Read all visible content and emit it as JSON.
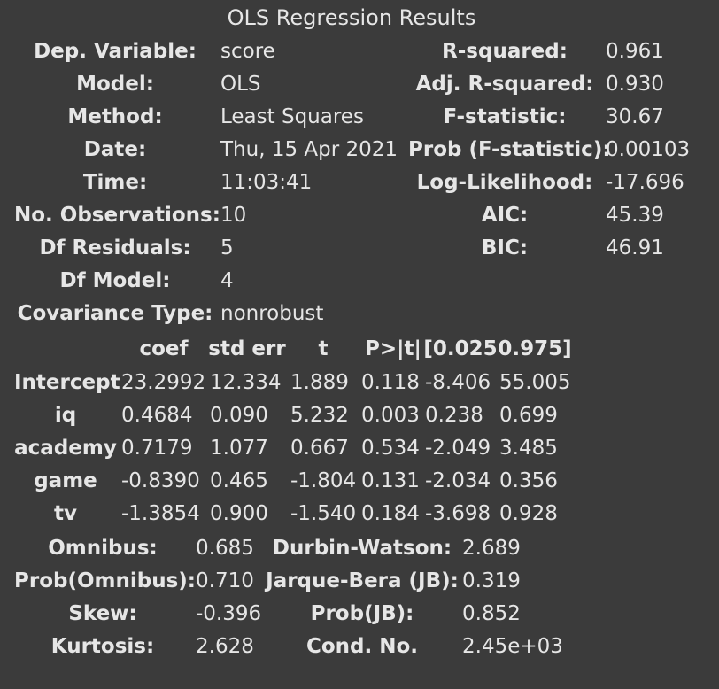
{
  "title": "OLS Regression Results",
  "top_table": {
    "rows": [
      {
        "l1": "Dep. Variable:",
        "v1": "score",
        "l2": "R-squared:",
        "v2": "0.961"
      },
      {
        "l1": "Model:",
        "v1": "OLS",
        "l2": "Adj. R-squared:",
        "v2": "0.930"
      },
      {
        "l1": "Method:",
        "v1": "Least Squares",
        "l2": "F-statistic:",
        "v2": "30.67"
      },
      {
        "l1": "Date:",
        "v1": "Thu, 15 Apr 2021",
        "l2": "Prob (F-statistic):",
        "v2": "0.00103"
      },
      {
        "l1": "Time:",
        "v1": "11:03:41",
        "l2": "Log-Likelihood:",
        "v2": "-17.696"
      },
      {
        "l1": "No. Observations:",
        "v1": "10",
        "l2": "AIC:",
        "v2": "45.39"
      },
      {
        "l1": "Df Residuals:",
        "v1": "5",
        "l2": "BIC:",
        "v2": "46.91"
      },
      {
        "l1": "Df Model:",
        "v1": "4",
        "l2": "",
        "v2": ""
      },
      {
        "l1": "Covariance Type:",
        "v1": "nonrobust",
        "l2": "",
        "v2": ""
      }
    ]
  },
  "coef_table": {
    "headers": [
      "coef",
      "std err",
      "t",
      "P>|t|",
      "[0.025",
      "0.975]"
    ],
    "rows": [
      {
        "name": "Intercept",
        "coef": "23.2992",
        "std_err": "12.334",
        "t": "1.889",
        "p": "0.118",
        "lo": "-8.406",
        "hi": "55.005"
      },
      {
        "name": "iq",
        "coef": "0.4684",
        "std_err": "0.090",
        "t": "5.232",
        "p": "0.003",
        "lo": "0.238",
        "hi": "0.699"
      },
      {
        "name": "academy",
        "coef": "0.7179",
        "std_err": "1.077",
        "t": "0.667",
        "p": "0.534",
        "lo": "-2.049",
        "hi": "3.485"
      },
      {
        "name": "game",
        "coef": "-0.8390",
        "std_err": "0.465",
        "t": "-1.804",
        "p": "0.131",
        "lo": "-2.034",
        "hi": "0.356"
      },
      {
        "name": "tv",
        "coef": "-1.3854",
        "std_err": "0.900",
        "t": "-1.540",
        "p": "0.184",
        "lo": "-3.698",
        "hi": "0.928"
      }
    ]
  },
  "bottom_table": {
    "rows": [
      {
        "l1": "Omnibus:",
        "v1": "0.685",
        "l2": "Durbin-Watson:",
        "v2": "2.689"
      },
      {
        "l1": "Prob(Omnibus):",
        "v1": "0.710",
        "l2": "Jarque-Bera (JB):",
        "v2": "0.319"
      },
      {
        "l1": "Skew:",
        "v1": "-0.396",
        "l2": "Prob(JB):",
        "v2": "0.852"
      },
      {
        "l1": "Kurtosis:",
        "v1": "2.628",
        "l2": "Cond. No.",
        "v2": "2.45e+03"
      }
    ]
  }
}
